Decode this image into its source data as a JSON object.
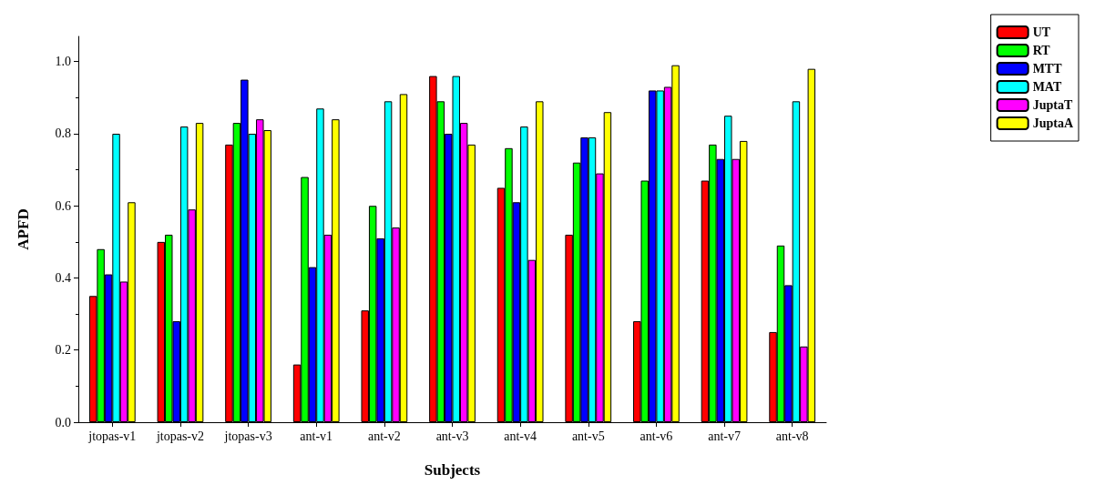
{
  "chart_data": {
    "type": "bar",
    "xlabel": "Subjects",
    "ylabel": "APFD",
    "categories": [
      "jtopas-v1",
      "jtopas-v2",
      "jtopas-v3",
      "ant-v1",
      "ant-v2",
      "ant-v3",
      "ant-v4",
      "ant-v5",
      "ant-v6",
      "ant-v7",
      "ant-v8"
    ],
    "series": [
      {
        "name": "UT",
        "color": "#ff0000",
        "values": [
          0.35,
          0.5,
          0.77,
          0.16,
          0.31,
          0.96,
          0.65,
          0.52,
          0.28,
          0.67,
          0.25
        ]
      },
      {
        "name": "RT",
        "color": "#00ff00",
        "values": [
          0.48,
          0.52,
          0.83,
          0.68,
          0.6,
          0.89,
          0.76,
          0.72,
          0.67,
          0.77,
          0.49
        ]
      },
      {
        "name": "MTT",
        "color": "#0000ff",
        "values": [
          0.41,
          0.28,
          0.95,
          0.43,
          0.51,
          0.8,
          0.61,
          0.79,
          0.92,
          0.73,
          0.38
        ]
      },
      {
        "name": "MAT",
        "color": "#00ffff",
        "values": [
          0.8,
          0.82,
          0.8,
          0.87,
          0.89,
          0.96,
          0.82,
          0.79,
          0.92,
          0.85,
          0.89
        ]
      },
      {
        "name": "JuptaT",
        "color": "#ff00ff",
        "values": [
          0.39,
          0.59,
          0.84,
          0.52,
          0.54,
          0.83,
          0.45,
          0.69,
          0.93,
          0.73,
          0.21
        ]
      },
      {
        "name": "JuptaA",
        "color": "#ffff00",
        "values": [
          0.61,
          0.83,
          0.81,
          0.84,
          0.91,
          0.77,
          0.89,
          0.86,
          0.99,
          0.78,
          0.98
        ]
      }
    ],
    "ylim": [
      0,
      1.07
    ],
    "yticks": [
      {
        "value": 0,
        "label": "0.0"
      },
      {
        "value": 0.2,
        "label": "0.2"
      },
      {
        "value": 0.4,
        "label": "0.4"
      },
      {
        "value": 0.6,
        "label": "0.6"
      },
      {
        "value": 0.8,
        "label": "0.8"
      },
      {
        "value": 1,
        "label": "1.0"
      }
    ],
    "grid": false,
    "legend": "top right"
  }
}
